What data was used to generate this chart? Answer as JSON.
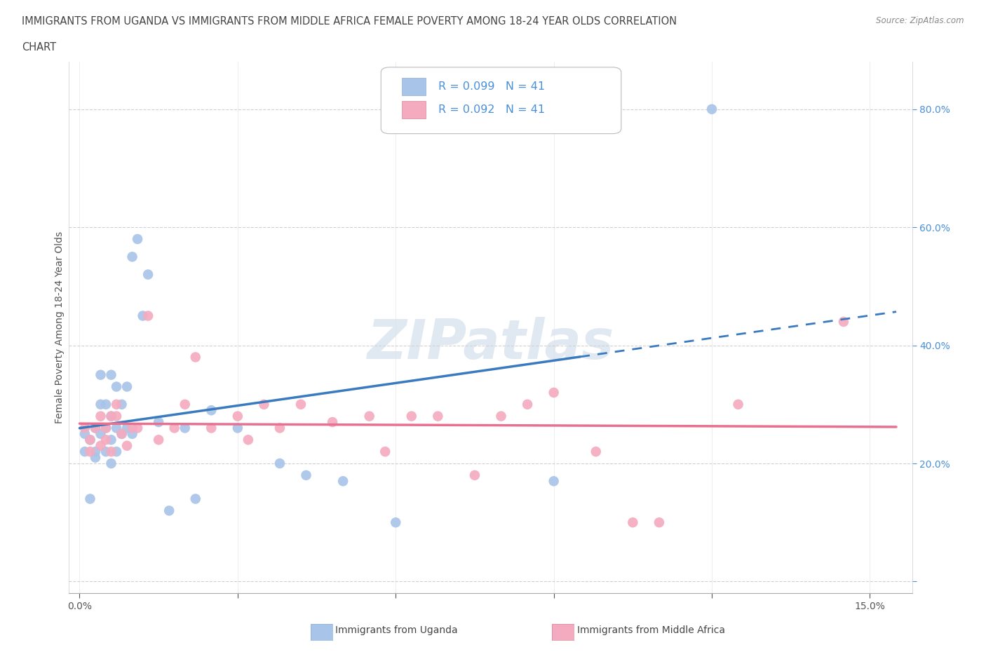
{
  "title_line1": "IMMIGRANTS FROM UGANDA VS IMMIGRANTS FROM MIDDLE AFRICA FEMALE POVERTY AMONG 18-24 YEAR OLDS CORRELATION",
  "title_line2": "CHART",
  "source": "Source: ZipAtlas.com",
  "ylabel": "Female Poverty Among 18-24 Year Olds",
  "xlim": [
    -0.002,
    0.158
  ],
  "ylim": [
    -0.02,
    0.88
  ],
  "uganda_color": "#a8c4e8",
  "middle_africa_color": "#f4aabf",
  "uganda_line_color": "#3a7abf",
  "middle_africa_line_color": "#e87090",
  "R_uganda": 0.099,
  "N_uganda": 41,
  "R_middle_africa": 0.092,
  "N_middle_africa": 41,
  "legend_label_uganda": "Immigrants from Uganda",
  "legend_label_middle_africa": "Immigrants from Middle Africa",
  "uganda_x": [
    0.001,
    0.001,
    0.002,
    0.002,
    0.003,
    0.003,
    0.003,
    0.004,
    0.004,
    0.004,
    0.005,
    0.005,
    0.005,
    0.006,
    0.006,
    0.006,
    0.006,
    0.007,
    0.007,
    0.007,
    0.008,
    0.008,
    0.009,
    0.009,
    0.01,
    0.01,
    0.011,
    0.012,
    0.013,
    0.015,
    0.017,
    0.02,
    0.022,
    0.025,
    0.03,
    0.038,
    0.043,
    0.05,
    0.06,
    0.09,
    0.12
  ],
  "uganda_y": [
    0.25,
    0.22,
    0.24,
    0.14,
    0.26,
    0.22,
    0.21,
    0.3,
    0.35,
    0.25,
    0.22,
    0.26,
    0.3,
    0.24,
    0.2,
    0.28,
    0.35,
    0.26,
    0.33,
    0.22,
    0.25,
    0.3,
    0.26,
    0.33,
    0.25,
    0.55,
    0.58,
    0.45,
    0.52,
    0.27,
    0.12,
    0.26,
    0.14,
    0.29,
    0.26,
    0.2,
    0.18,
    0.17,
    0.1,
    0.17,
    0.8
  ],
  "middle_africa_x": [
    0.001,
    0.002,
    0.002,
    0.003,
    0.004,
    0.004,
    0.005,
    0.005,
    0.006,
    0.006,
    0.007,
    0.007,
    0.008,
    0.009,
    0.01,
    0.011,
    0.013,
    0.015,
    0.018,
    0.02,
    0.022,
    0.025,
    0.03,
    0.032,
    0.035,
    0.038,
    0.042,
    0.048,
    0.055,
    0.058,
    0.063,
    0.068,
    0.075,
    0.08,
    0.085,
    0.09,
    0.098,
    0.105,
    0.11,
    0.125,
    0.145
  ],
  "middle_africa_y": [
    0.26,
    0.24,
    0.22,
    0.26,
    0.23,
    0.28,
    0.24,
    0.26,
    0.22,
    0.28,
    0.28,
    0.3,
    0.25,
    0.23,
    0.26,
    0.26,
    0.45,
    0.24,
    0.26,
    0.3,
    0.38,
    0.26,
    0.28,
    0.24,
    0.3,
    0.26,
    0.3,
    0.27,
    0.28,
    0.22,
    0.28,
    0.28,
    0.18,
    0.28,
    0.3,
    0.32,
    0.22,
    0.1,
    0.1,
    0.3,
    0.44
  ]
}
